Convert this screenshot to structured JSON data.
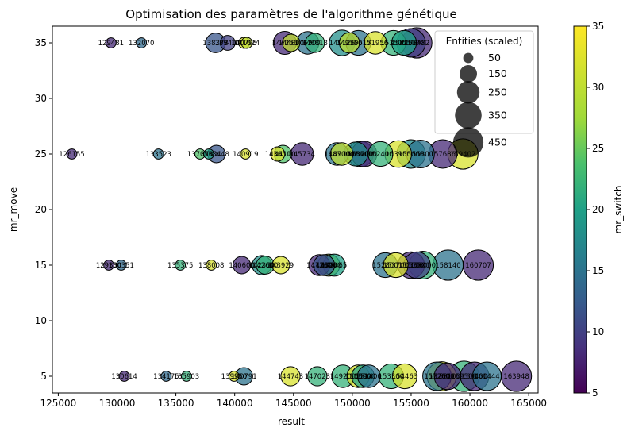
{
  "chart_data": {
    "type": "scatter",
    "title": "Optimisation des paramètres de l'algorithme génétique",
    "xlabel": "result",
    "ylabel": "mr_move",
    "xlim": [
      124500,
      165800
    ],
    "ylim": [
      3.5,
      36.5
    ],
    "xticks": [
      125000,
      130000,
      135000,
      140000,
      145000,
      150000,
      155000,
      160000,
      165000
    ],
    "yticks": [
      5,
      10,
      15,
      20,
      25,
      30,
      35
    ],
    "xtick_labels": [
      "125000",
      "130000",
      "135000",
      "140000",
      "145000",
      "150000",
      "155000",
      "160000",
      "165000"
    ],
    "ytick_labels": [
      "5",
      "10",
      "15",
      "20",
      "25",
      "30",
      "35"
    ],
    "grid": false,
    "colorbar": {
      "label": "mr_switch",
      "colormap": "viridis",
      "range": [
        5,
        35
      ],
      "ticks": [
        5,
        10,
        15,
        20,
        25,
        30,
        35
      ],
      "tick_labels": [
        "5",
        "10",
        "15",
        "20",
        "25",
        "30",
        "35"
      ]
    },
    "legend": {
      "title": "Entities (scaled)",
      "placement": "top-right",
      "entries": [
        {
          "label": "50",
          "size": 50
        },
        {
          "label": "150",
          "size": 150
        },
        {
          "label": "250",
          "size": 250
        },
        {
          "label": "350",
          "size": 350
        },
        {
          "label": "450",
          "size": 450
        }
      ]
    },
    "point_style": {
      "alpha": 0.75,
      "edge_color": "#000000"
    },
    "points": [
      {
        "x": 129481,
        "y": 35,
        "size": 50,
        "color": 8,
        "label": "129481"
      },
      {
        "x": 132070,
        "y": 35,
        "size": 50,
        "color": 14,
        "label": "132070"
      },
      {
        "x": 138378,
        "y": 35,
        "size": 190,
        "color": 12,
        "label": "138378"
      },
      {
        "x": 139400,
        "y": 35,
        "size": 110,
        "color": 10,
        "label": "139400"
      },
      {
        "x": 140795,
        "y": 35,
        "size": 60,
        "color": 32,
        "label": "140795"
      },
      {
        "x": 141024,
        "y": 35,
        "size": 60,
        "color": 30,
        "label": "141024"
      },
      {
        "x": 144256,
        "y": 35,
        "size": 260,
        "color": 8,
        "label": "144256"
      },
      {
        "x": 144800,
        "y": 35,
        "size": 150,
        "color": 30,
        "label": "144800"
      },
      {
        "x": 146200,
        "y": 35,
        "size": 250,
        "color": 15,
        "label": "146200"
      },
      {
        "x": 146818,
        "y": 35,
        "size": 180,
        "color": 22,
        "label": "146818"
      },
      {
        "x": 149126,
        "y": 35,
        "size": 320,
        "color": 18,
        "label": "149126"
      },
      {
        "x": 149750,
        "y": 35,
        "size": 200,
        "color": 30,
        "label": "149750"
      },
      {
        "x": 150517,
        "y": 35,
        "size": 300,
        "color": 15,
        "label": "150517"
      },
      {
        "x": 151956,
        "y": 35,
        "size": 250,
        "color": 32,
        "label": "151956"
      },
      {
        "x": 153500,
        "y": 35,
        "size": 300,
        "color": 22,
        "label": "153500"
      },
      {
        "x": 154400,
        "y": 35,
        "size": 300,
        "color": 20,
        "label": "154400"
      },
      {
        "x": 155000,
        "y": 35,
        "size": 400,
        "color": 10,
        "label": "155000"
      },
      {
        "x": 155482,
        "y": 35,
        "size": 450,
        "color": 8,
        "label": "155482"
      },
      {
        "x": 126155,
        "y": 25,
        "size": 50,
        "color": 8,
        "label": "126155"
      },
      {
        "x": 133523,
        "y": 25,
        "size": 50,
        "color": 15,
        "label": "133523"
      },
      {
        "x": 137050,
        "y": 25,
        "size": 50,
        "color": 24,
        "label": "137050"
      },
      {
        "x": 137800,
        "y": 25,
        "size": 50,
        "color": 20,
        "label": "137800"
      },
      {
        "x": 138448,
        "y": 25,
        "size": 150,
        "color": 12,
        "label": "138448"
      },
      {
        "x": 140919,
        "y": 25,
        "size": 50,
        "color": 32,
        "label": "140919"
      },
      {
        "x": 143650,
        "y": 25,
        "size": 100,
        "color": 32,
        "label": "143650"
      },
      {
        "x": 144100,
        "y": 25,
        "size": 150,
        "color": 24,
        "label": "144100"
      },
      {
        "x": 145734,
        "y": 25,
        "size": 250,
        "color": 8,
        "label": "145734"
      },
      {
        "x": 148700,
        "y": 25,
        "size": 250,
        "color": 15,
        "label": "148700"
      },
      {
        "x": 149100,
        "y": 25,
        "size": 250,
        "color": 30,
        "label": "149100"
      },
      {
        "x": 150300,
        "y": 25,
        "size": 280,
        "color": 18,
        "label": "150300"
      },
      {
        "x": 150700,
        "y": 25,
        "size": 320,
        "color": 12,
        "label": "150700"
      },
      {
        "x": 151000,
        "y": 25,
        "size": 320,
        "color": 8,
        "label": "151000"
      },
      {
        "x": 152400,
        "y": 25,
        "size": 300,
        "color": 22,
        "label": "152400"
      },
      {
        "x": 153900,
        "y": 25,
        "size": 350,
        "color": 32,
        "label": "153900"
      },
      {
        "x": 155000,
        "y": 25,
        "size": 400,
        "color": 18,
        "label": "155000"
      },
      {
        "x": 155800,
        "y": 25,
        "size": 380,
        "color": 15,
        "label": "155800"
      },
      {
        "x": 157686,
        "y": 25,
        "size": 400,
        "color": 8,
        "label": "157686"
      },
      {
        "x": 159402,
        "y": 25,
        "size": 450,
        "color": 32,
        "label": "159402"
      },
      {
        "x": 129300,
        "y": 15,
        "size": 50,
        "color": 8,
        "label": "129300"
      },
      {
        "x": 130351,
        "y": 15,
        "size": 50,
        "color": 14,
        "label": "130351"
      },
      {
        "x": 135375,
        "y": 15,
        "size": 50,
        "color": 22,
        "label": "135375"
      },
      {
        "x": 138008,
        "y": 15,
        "size": 50,
        "color": 32,
        "label": "138008"
      },
      {
        "x": 140600,
        "y": 15,
        "size": 150,
        "color": 8,
        "label": "140600"
      },
      {
        "x": 142300,
        "y": 15,
        "size": 180,
        "color": 18,
        "label": "142300"
      },
      {
        "x": 142600,
        "y": 15,
        "size": 160,
        "color": 22,
        "label": "142600"
      },
      {
        "x": 143929,
        "y": 15,
        "size": 150,
        "color": 32,
        "label": "143929"
      },
      {
        "x": 147200,
        "y": 15,
        "size": 220,
        "color": 8,
        "label": "147200"
      },
      {
        "x": 147600,
        "y": 15,
        "size": 220,
        "color": 12,
        "label": "147600"
      },
      {
        "x": 148000,
        "y": 15,
        "size": 240,
        "color": 28,
        "label": "148000"
      },
      {
        "x": 148465,
        "y": 15,
        "size": 240,
        "color": 20,
        "label": "148465"
      },
      {
        "x": 152800,
        "y": 15,
        "size": 300,
        "color": 15,
        "label": "152800"
      },
      {
        "x": 153700,
        "y": 15,
        "size": 300,
        "color": 32,
        "label": "153700"
      },
      {
        "x": 155000,
        "y": 15,
        "size": 350,
        "color": 8,
        "label": "155000"
      },
      {
        "x": 155500,
        "y": 15,
        "size": 350,
        "color": 10,
        "label": "155500"
      },
      {
        "x": 156000,
        "y": 15,
        "size": 380,
        "color": 22,
        "label": "156000"
      },
      {
        "x": 158140,
        "y": 15,
        "size": 450,
        "color": 15,
        "label": "158140"
      },
      {
        "x": 160707,
        "y": 15,
        "size": 450,
        "color": 8,
        "label": "160707"
      },
      {
        "x": 130614,
        "y": 5,
        "size": 50,
        "color": 8,
        "label": "130614"
      },
      {
        "x": 134175,
        "y": 5,
        "size": 50,
        "color": 14,
        "label": "134175"
      },
      {
        "x": 135903,
        "y": 5,
        "size": 50,
        "color": 22,
        "label": "135903"
      },
      {
        "x": 139950,
        "y": 5,
        "size": 50,
        "color": 32,
        "label": "139950"
      },
      {
        "x": 140791,
        "y": 5,
        "size": 150,
        "color": 15,
        "label": "140791"
      },
      {
        "x": 144743,
        "y": 5,
        "size": 180,
        "color": 32,
        "label": "144743"
      },
      {
        "x": 147023,
        "y": 5,
        "size": 180,
        "color": 22,
        "label": "147023"
      },
      {
        "x": 149200,
        "y": 5,
        "size": 250,
        "color": 22,
        "label": "149200"
      },
      {
        "x": 150500,
        "y": 5,
        "size": 250,
        "color": 32,
        "label": "150500"
      },
      {
        "x": 150900,
        "y": 5,
        "size": 250,
        "color": 20,
        "label": "150900"
      },
      {
        "x": 151400,
        "y": 5,
        "size": 250,
        "color": 15,
        "label": "151400"
      },
      {
        "x": 153300,
        "y": 5,
        "size": 300,
        "color": 22,
        "label": "153300"
      },
      {
        "x": 154463,
        "y": 5,
        "size": 300,
        "color": 32,
        "label": "154463"
      },
      {
        "x": 157200,
        "y": 5,
        "size": 400,
        "color": 15,
        "label": "157200"
      },
      {
        "x": 157600,
        "y": 5,
        "size": 420,
        "color": 32,
        "label": "157600"
      },
      {
        "x": 158100,
        "y": 5,
        "size": 350,
        "color": 8,
        "label": "158100"
      },
      {
        "x": 159500,
        "y": 5,
        "size": 450,
        "color": 22,
        "label": "159500"
      },
      {
        "x": 160400,
        "y": 5,
        "size": 400,
        "color": 8,
        "label": "160400"
      },
      {
        "x": 161444,
        "y": 5,
        "size": 400,
        "color": 15,
        "label": "161444"
      },
      {
        "x": 163948,
        "y": 5,
        "size": 450,
        "color": 8,
        "label": "163948"
      }
    ]
  }
}
